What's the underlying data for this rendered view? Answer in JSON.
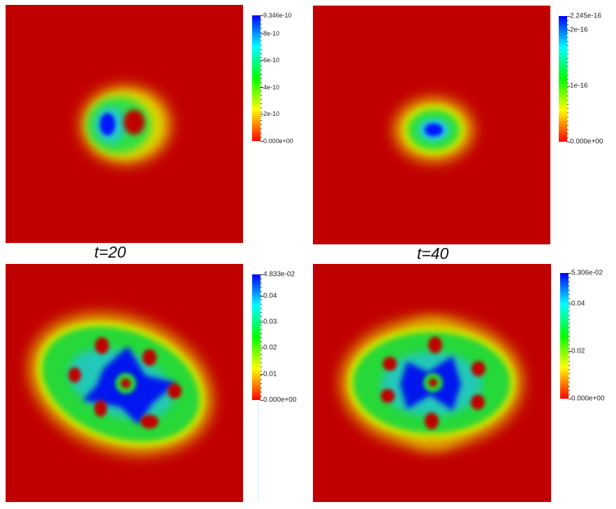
{
  "panels": [
    {
      "name": "top-left",
      "colorbar": {
        "max_label": "9.346e-10",
        "min_label": "0.000e+00",
        "labels": [
          "8e-10",
          "6e-10",
          "4e-10",
          "2e-10"
        ],
        "values": [
          0.856,
          0.642,
          0.428,
          0.214
        ]
      }
    },
    {
      "name": "top-right",
      "colorbar": {
        "max_label": "2.245e-16",
        "min_label": "0.000e+00",
        "labels": [
          "2e-16",
          "1e-16"
        ],
        "values": [
          0.891,
          0.445
        ]
      }
    },
    {
      "name": "bottom-left",
      "caption": "t=20",
      "colorbar": {
        "max_label": "4.833e-02",
        "min_label": "0.000e+00",
        "labels": [
          "0.04",
          "0.03",
          "0.02",
          "0.01"
        ],
        "values": [
          0.828,
          0.621,
          0.414,
          0.207
        ]
      }
    },
    {
      "name": "bottom-right",
      "caption": "t=40",
      "colorbar": {
        "max_label": "5.306e-02",
        "min_label": "0.000e+00",
        "labels": [
          "0.04",
          "0.02"
        ],
        "values": [
          0.754,
          0.377
        ]
      }
    }
  ],
  "colors": {
    "background_field": "#c00000",
    "colormap": [
      "#ff0000",
      "#ffff00",
      "#00ff00",
      "#00ffff",
      "#0000ff"
    ]
  }
}
